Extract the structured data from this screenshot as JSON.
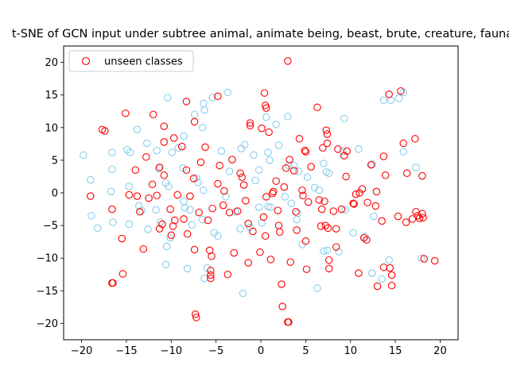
{
  "chart_data": {
    "type": "scatter",
    "title": "t-SNE of GCN input under subtree animal, animate being, beast, brute, creature, fauna",
    "xlabel": "",
    "ylabel": "",
    "xlim": [
      -22,
      22
    ],
    "ylim": [
      -22.5,
      22.5
    ],
    "xticks": [
      "−20",
      "−15",
      "−10",
      "−5",
      "0",
      "5",
      "10",
      "15",
      "20"
    ],
    "yticks": [
      "−20",
      "−15",
      "−10",
      "−5",
      "0",
      "5",
      "10",
      "15",
      "20"
    ],
    "grid": false,
    "legend": {
      "position": "top-left",
      "entries": [
        "unseen classes"
      ]
    },
    "series": [
      {
        "name": "",
        "color": "#87ceeb",
        "marker": "open-circle",
        "points": [
          [
            -19.8,
            5.8
          ],
          [
            -19.0,
            2.0
          ],
          [
            -18.9,
            -3.5
          ],
          [
            -18.2,
            -5.4
          ],
          [
            -16.6,
            6.2
          ],
          [
            -16.6,
            3.6
          ],
          [
            -16.7,
            0.2
          ],
          [
            -16.5,
            -4.5
          ],
          [
            -14.9,
            6.6
          ],
          [
            -14.6,
            6.2
          ],
          [
            -14.7,
            1.0
          ],
          [
            -14.7,
            -4.8
          ],
          [
            -13.8,
            9.7
          ],
          [
            -13.6,
            -2.0
          ],
          [
            -13.3,
            -2.7
          ],
          [
            -12.7,
            7.6
          ],
          [
            -12.6,
            -5.6
          ],
          [
            -11.6,
            6.5
          ],
          [
            -11.4,
            3.7
          ],
          [
            -11.7,
            -2.6
          ],
          [
            -11.2,
            -4.5
          ],
          [
            -10.4,
            14.6
          ],
          [
            -10.6,
            1.5
          ],
          [
            -10.3,
            1.0
          ],
          [
            -10.5,
            -8.2
          ],
          [
            -10.6,
            -11.0
          ],
          [
            -9.9,
            6.2
          ],
          [
            -10.1,
            -6.9
          ],
          [
            -9.2,
            6.9
          ],
          [
            -8.6,
            8.7
          ],
          [
            -8.7,
            3.8
          ],
          [
            -8.6,
            -1.3
          ],
          [
            -8.2,
            -11.6
          ],
          [
            -7.9,
            -2.6
          ],
          [
            -7.7,
            -4.9
          ],
          [
            -7.4,
            12.0
          ],
          [
            -7.2,
            2.3
          ],
          [
            -7.0,
            1.6
          ],
          [
            -6.4,
            13.7
          ],
          [
            -6.3,
            12.7
          ],
          [
            -6.5,
            10.0
          ],
          [
            -6.4,
            0.4
          ],
          [
            -6.5,
            -4.1
          ],
          [
            -6.0,
            -11.5
          ],
          [
            -6.3,
            -13.1
          ],
          [
            -5.4,
            14.6
          ],
          [
            -5.2,
            -6.1
          ],
          [
            -4.8,
            -6.6
          ],
          [
            -4.4,
            6.4
          ],
          [
            -3.7,
            15.4
          ],
          [
            -3.9,
            -0.6
          ],
          [
            -2.8,
            -2.9
          ],
          [
            -2.2,
            6.8
          ],
          [
            -1.8,
            7.4
          ],
          [
            -2.0,
            -15.4
          ],
          [
            -2.3,
            -5.5
          ],
          [
            -1.2,
            -5.3
          ],
          [
            -0.8,
            5.8
          ],
          [
            -0.6,
            1.9
          ],
          [
            -0.2,
            3.5
          ],
          [
            -0.2,
            -2.2
          ],
          [
            0.1,
            -4.6
          ],
          [
            0.6,
            11.6
          ],
          [
            0.8,
            6.2
          ],
          [
            1.0,
            5.0
          ],
          [
            0.8,
            -2.1
          ],
          [
            1.1,
            -2.2
          ],
          [
            1.7,
            10.5
          ],
          [
            2.0,
            7.3
          ],
          [
            2.7,
            -0.6
          ],
          [
            3.0,
            11.7
          ],
          [
            3.1,
            4.2
          ],
          [
            3.7,
            4.2
          ],
          [
            3.4,
            -1.6
          ],
          [
            4.2,
            3.3
          ],
          [
            4.1,
            -3.1
          ],
          [
            4.6,
            -7.9
          ],
          [
            5.2,
            2.4
          ],
          [
            6.0,
            0.8
          ],
          [
            6.5,
            0.4
          ],
          [
            6.3,
            -14.6
          ],
          [
            7.0,
            4.5
          ],
          [
            7.3,
            3.2
          ],
          [
            7.6,
            3.0
          ],
          [
            7.0,
            -8.9
          ],
          [
            7.4,
            -8.8
          ],
          [
            8.7,
            -9.0
          ],
          [
            9.3,
            11.4
          ],
          [
            9.4,
            -2.6
          ],
          [
            10.3,
            -6.1
          ],
          [
            10.9,
            6.7
          ],
          [
            11.6,
            -6.7
          ],
          [
            12.4,
            4.4
          ],
          [
            12.4,
            -12.3
          ],
          [
            13.5,
            -13.2
          ],
          [
            13.7,
            14.2
          ],
          [
            14.3,
            -10.3
          ],
          [
            14.5,
            14.2
          ],
          [
            15.4,
            14.5
          ],
          [
            15.9,
            15.4
          ],
          [
            17.3,
            3.9
          ],
          [
            17.9,
            -10.0
          ],
          [
            15.9,
            6.3
          ],
          [
            9.1,
            6.4
          ],
          [
            12.6,
            -3.6
          ],
          [
            -3.5,
            3.3
          ],
          [
            4.0,
            -4.1
          ],
          [
            -8.5,
            -2.3
          ]
        ]
      },
      {
        "name": "unseen classes",
        "color": "#ff0000",
        "marker": "open-circle",
        "points": [
          [
            -17.7,
            9.7
          ],
          [
            -17.4,
            9.5
          ],
          [
            -15.1,
            12.2
          ],
          [
            -12.0,
            12.0
          ],
          [
            -10.8,
            10.2
          ],
          [
            -8.3,
            14.0
          ],
          [
            -7.4,
            10.9
          ],
          [
            -4.8,
            14.8
          ],
          [
            -1.2,
            10.7
          ],
          [
            -1.2,
            10.3
          ],
          [
            0.4,
            15.3
          ],
          [
            0.5,
            13.4
          ],
          [
            0.6,
            13.0
          ],
          [
            0.1,
            9.9
          ],
          [
            0.9,
            9.3
          ],
          [
            3.0,
            20.2
          ],
          [
            6.3,
            13.1
          ],
          [
            7.3,
            9.6
          ],
          [
            7.4,
            9.0
          ],
          [
            7.4,
            7.6
          ],
          [
            15.6,
            15.6
          ],
          [
            14.3,
            15.1
          ],
          [
            15.9,
            7.6
          ],
          [
            17.2,
            8.3
          ],
          [
            -19.0,
            -0.5
          ],
          [
            -16.6,
            -2.5
          ],
          [
            -15.5,
            -7.0
          ],
          [
            -15.4,
            -12.4
          ],
          [
            -16.6,
            -13.8
          ],
          [
            -16.5,
            -13.8
          ],
          [
            -14.7,
            -0.3
          ],
          [
            -14.0,
            3.5
          ],
          [
            -13.5,
            -2.9
          ],
          [
            -13.1,
            -8.6
          ],
          [
            -12.8,
            5.5
          ],
          [
            -12.1,
            1.3
          ],
          [
            -11.6,
            -0.4
          ],
          [
            -11.3,
            3.9
          ],
          [
            -11.3,
            -5.5
          ],
          [
            -11.0,
            -4.8
          ],
          [
            -10.8,
            7.8
          ],
          [
            -10.8,
            2.7
          ],
          [
            -10.1,
            -2.5
          ],
          [
            -10.0,
            -6.5
          ],
          [
            -9.8,
            -5.1
          ],
          [
            -9.6,
            -4.2
          ],
          [
            -9.3,
            -0.3
          ],
          [
            -8.8,
            7.1
          ],
          [
            -8.3,
            3.5
          ],
          [
            -8.2,
            -6.3
          ],
          [
            -7.9,
            -0.5
          ],
          [
            -7.5,
            2.2
          ],
          [
            -7.4,
            -8.7
          ],
          [
            -7.3,
            -18.6
          ],
          [
            -7.2,
            -19.1
          ],
          [
            -6.7,
            4.7
          ],
          [
            -6.2,
            7.0
          ],
          [
            -5.9,
            -4.2
          ],
          [
            -5.7,
            -8.8
          ],
          [
            -5.6,
            -11.9
          ],
          [
            -5.6,
            -12.6
          ],
          [
            -5.6,
            -13.1
          ],
          [
            -5.4,
            -2.4
          ],
          [
            -4.8,
            1.4
          ],
          [
            -4.6,
            4.2
          ],
          [
            -4.2,
            -1.9
          ],
          [
            -3.7,
            -12.5
          ],
          [
            -3.5,
            -3.0
          ],
          [
            -3.0,
            -9.2
          ],
          [
            -2.6,
            -2.8
          ],
          [
            -2.3,
            3.0
          ],
          [
            -2.1,
            2.4
          ],
          [
            -1.9,
            1.2
          ],
          [
            -1.7,
            -1.2
          ],
          [
            -1.4,
            -4.7
          ],
          [
            -0.9,
            -5.9
          ],
          [
            -0.1,
            -9.1
          ],
          [
            0.3,
            -3.7
          ],
          [
            0.6,
            -0.6
          ],
          [
            1.1,
            -10.2
          ],
          [
            1.4,
            0.2
          ],
          [
            1.7,
            1.8
          ],
          [
            1.9,
            -2.7
          ],
          [
            2.0,
            -5.0
          ],
          [
            2.3,
            -14.0
          ],
          [
            2.4,
            -17.4
          ],
          [
            2.6,
            0.9
          ],
          [
            2.8,
            3.8
          ],
          [
            3.0,
            -19.8
          ],
          [
            3.1,
            -19.8
          ],
          [
            3.7,
            3.4
          ],
          [
            3.9,
            -2.9
          ],
          [
            4.0,
            -5.7
          ],
          [
            4.3,
            8.3
          ],
          [
            4.6,
            0.4
          ],
          [
            4.9,
            6.5
          ],
          [
            5.0,
            6.3
          ],
          [
            5.1,
            -11.7
          ],
          [
            5.0,
            -7.4
          ],
          [
            5.3,
            -1.4
          ],
          [
            5.6,
            4.0
          ],
          [
            6.5,
            -1.1
          ],
          [
            6.7,
            -5.1
          ],
          [
            6.9,
            6.9
          ],
          [
            7.1,
            -1.3
          ],
          [
            7.2,
            -5.0
          ],
          [
            7.5,
            -5.4
          ],
          [
            7.6,
            -11.6
          ],
          [
            8.1,
            -2.8
          ],
          [
            8.4,
            -8.3
          ],
          [
            8.6,
            6.7
          ],
          [
            9.0,
            -2.5
          ],
          [
            9.3,
            5.7
          ],
          [
            9.5,
            2.5
          ],
          [
            9.6,
            6.4
          ],
          [
            10.3,
            -1.6
          ],
          [
            10.4,
            -1.7
          ],
          [
            10.9,
            -12.3
          ],
          [
            11.0,
            0.0
          ],
          [
            11.3,
            0.6
          ],
          [
            11.5,
            -6.9
          ],
          [
            11.9,
            -1.5
          ],
          [
            12.3,
            4.3
          ],
          [
            12.8,
            -2.0
          ],
          [
            12.9,
            0.2
          ],
          [
            13.0,
            -14.3
          ],
          [
            13.5,
            -4.3
          ],
          [
            13.7,
            5.6
          ],
          [
            13.9,
            2.7
          ],
          [
            14.4,
            -11.5
          ],
          [
            14.6,
            -12.6
          ],
          [
            14.6,
            -14.2
          ],
          [
            15.3,
            -3.6
          ],
          [
            16.3,
            3.0
          ],
          [
            17.3,
            -2.9
          ],
          [
            17.5,
            -3.5
          ],
          [
            18.0,
            -3.2
          ],
          [
            18.2,
            -10.1
          ],
          [
            18.0,
            2.6
          ],
          [
            19.4,
            -10.4
          ],
          [
            17.7,
            -3.9
          ],
          [
            18.1,
            -3.8
          ],
          [
            16.9,
            -4.0
          ],
          [
            11.8,
            -7.2
          ],
          [
            1.3,
            -0.1
          ],
          [
            -1.4,
            -10.7
          ],
          [
            2.1,
            -6.0
          ],
          [
            4.7,
            -0.4
          ],
          [
            6.8,
            -2.5
          ],
          [
            -13.8,
            -0.5
          ],
          [
            -9.7,
            8.4
          ],
          [
            -3.2,
            5.1
          ],
          [
            0.5,
            -6.6
          ],
          [
            7.6,
            -10.3
          ],
          [
            13.7,
            -11.4
          ],
          [
            -4.1,
            0.3
          ],
          [
            -8.6,
            -4.0
          ],
          [
            -6.9,
            -3.0
          ],
          [
            3.2,
            5.1
          ],
          [
            -12.5,
            -0.8
          ],
          [
            16.2,
            -4.5
          ],
          [
            -5.5,
            -9.7
          ],
          [
            8.4,
            -5.5
          ],
          [
            3.3,
            -10.6
          ],
          [
            10.6,
            -0.2
          ]
        ]
      }
    ]
  }
}
